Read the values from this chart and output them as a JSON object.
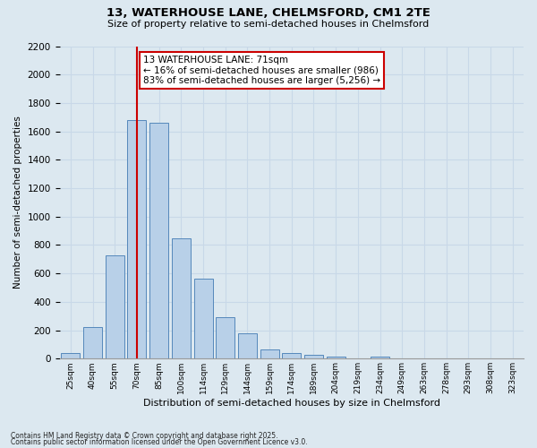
{
  "title1": "13, WATERHOUSE LANE, CHELMSFORD, CM1 2TE",
  "title2": "Size of property relative to semi-detached houses in Chelmsford",
  "xlabel": "Distribution of semi-detached houses by size in Chelmsford",
  "ylabel": "Number of semi-detached properties",
  "categories": [
    "25sqm",
    "40sqm",
    "55sqm",
    "70sqm",
    "85sqm",
    "100sqm",
    "114sqm",
    "129sqm",
    "144sqm",
    "159sqm",
    "174sqm",
    "189sqm",
    "204sqm",
    "219sqm",
    "234sqm",
    "249sqm",
    "263sqm",
    "278sqm",
    "293sqm",
    "308sqm",
    "323sqm"
  ],
  "values": [
    42,
    225,
    725,
    1680,
    1660,
    850,
    565,
    295,
    180,
    62,
    38,
    25,
    17,
    0,
    14,
    0,
    0,
    0,
    0,
    0,
    0
  ],
  "bar_color": "#b8d0e8",
  "bar_edge_color": "#5588bb",
  "vline_color": "#cc0000",
  "annotation_text": "13 WATERHOUSE LANE: 71sqm\n← 16% of semi-detached houses are smaller (986)\n83% of semi-detached houses are larger (5,256) →",
  "annotation_box_color": "#ffffff",
  "annotation_box_edge": "#cc0000",
  "ylim": [
    0,
    2200
  ],
  "yticks": [
    0,
    200,
    400,
    600,
    800,
    1000,
    1200,
    1400,
    1600,
    1800,
    2000,
    2200
  ],
  "grid_color": "#c8d8e8",
  "bg_color": "#dce8f0",
  "footer1": "Contains HM Land Registry data © Crown copyright and database right 2025.",
  "footer2": "Contains public sector information licensed under the Open Government Licence v3.0."
}
